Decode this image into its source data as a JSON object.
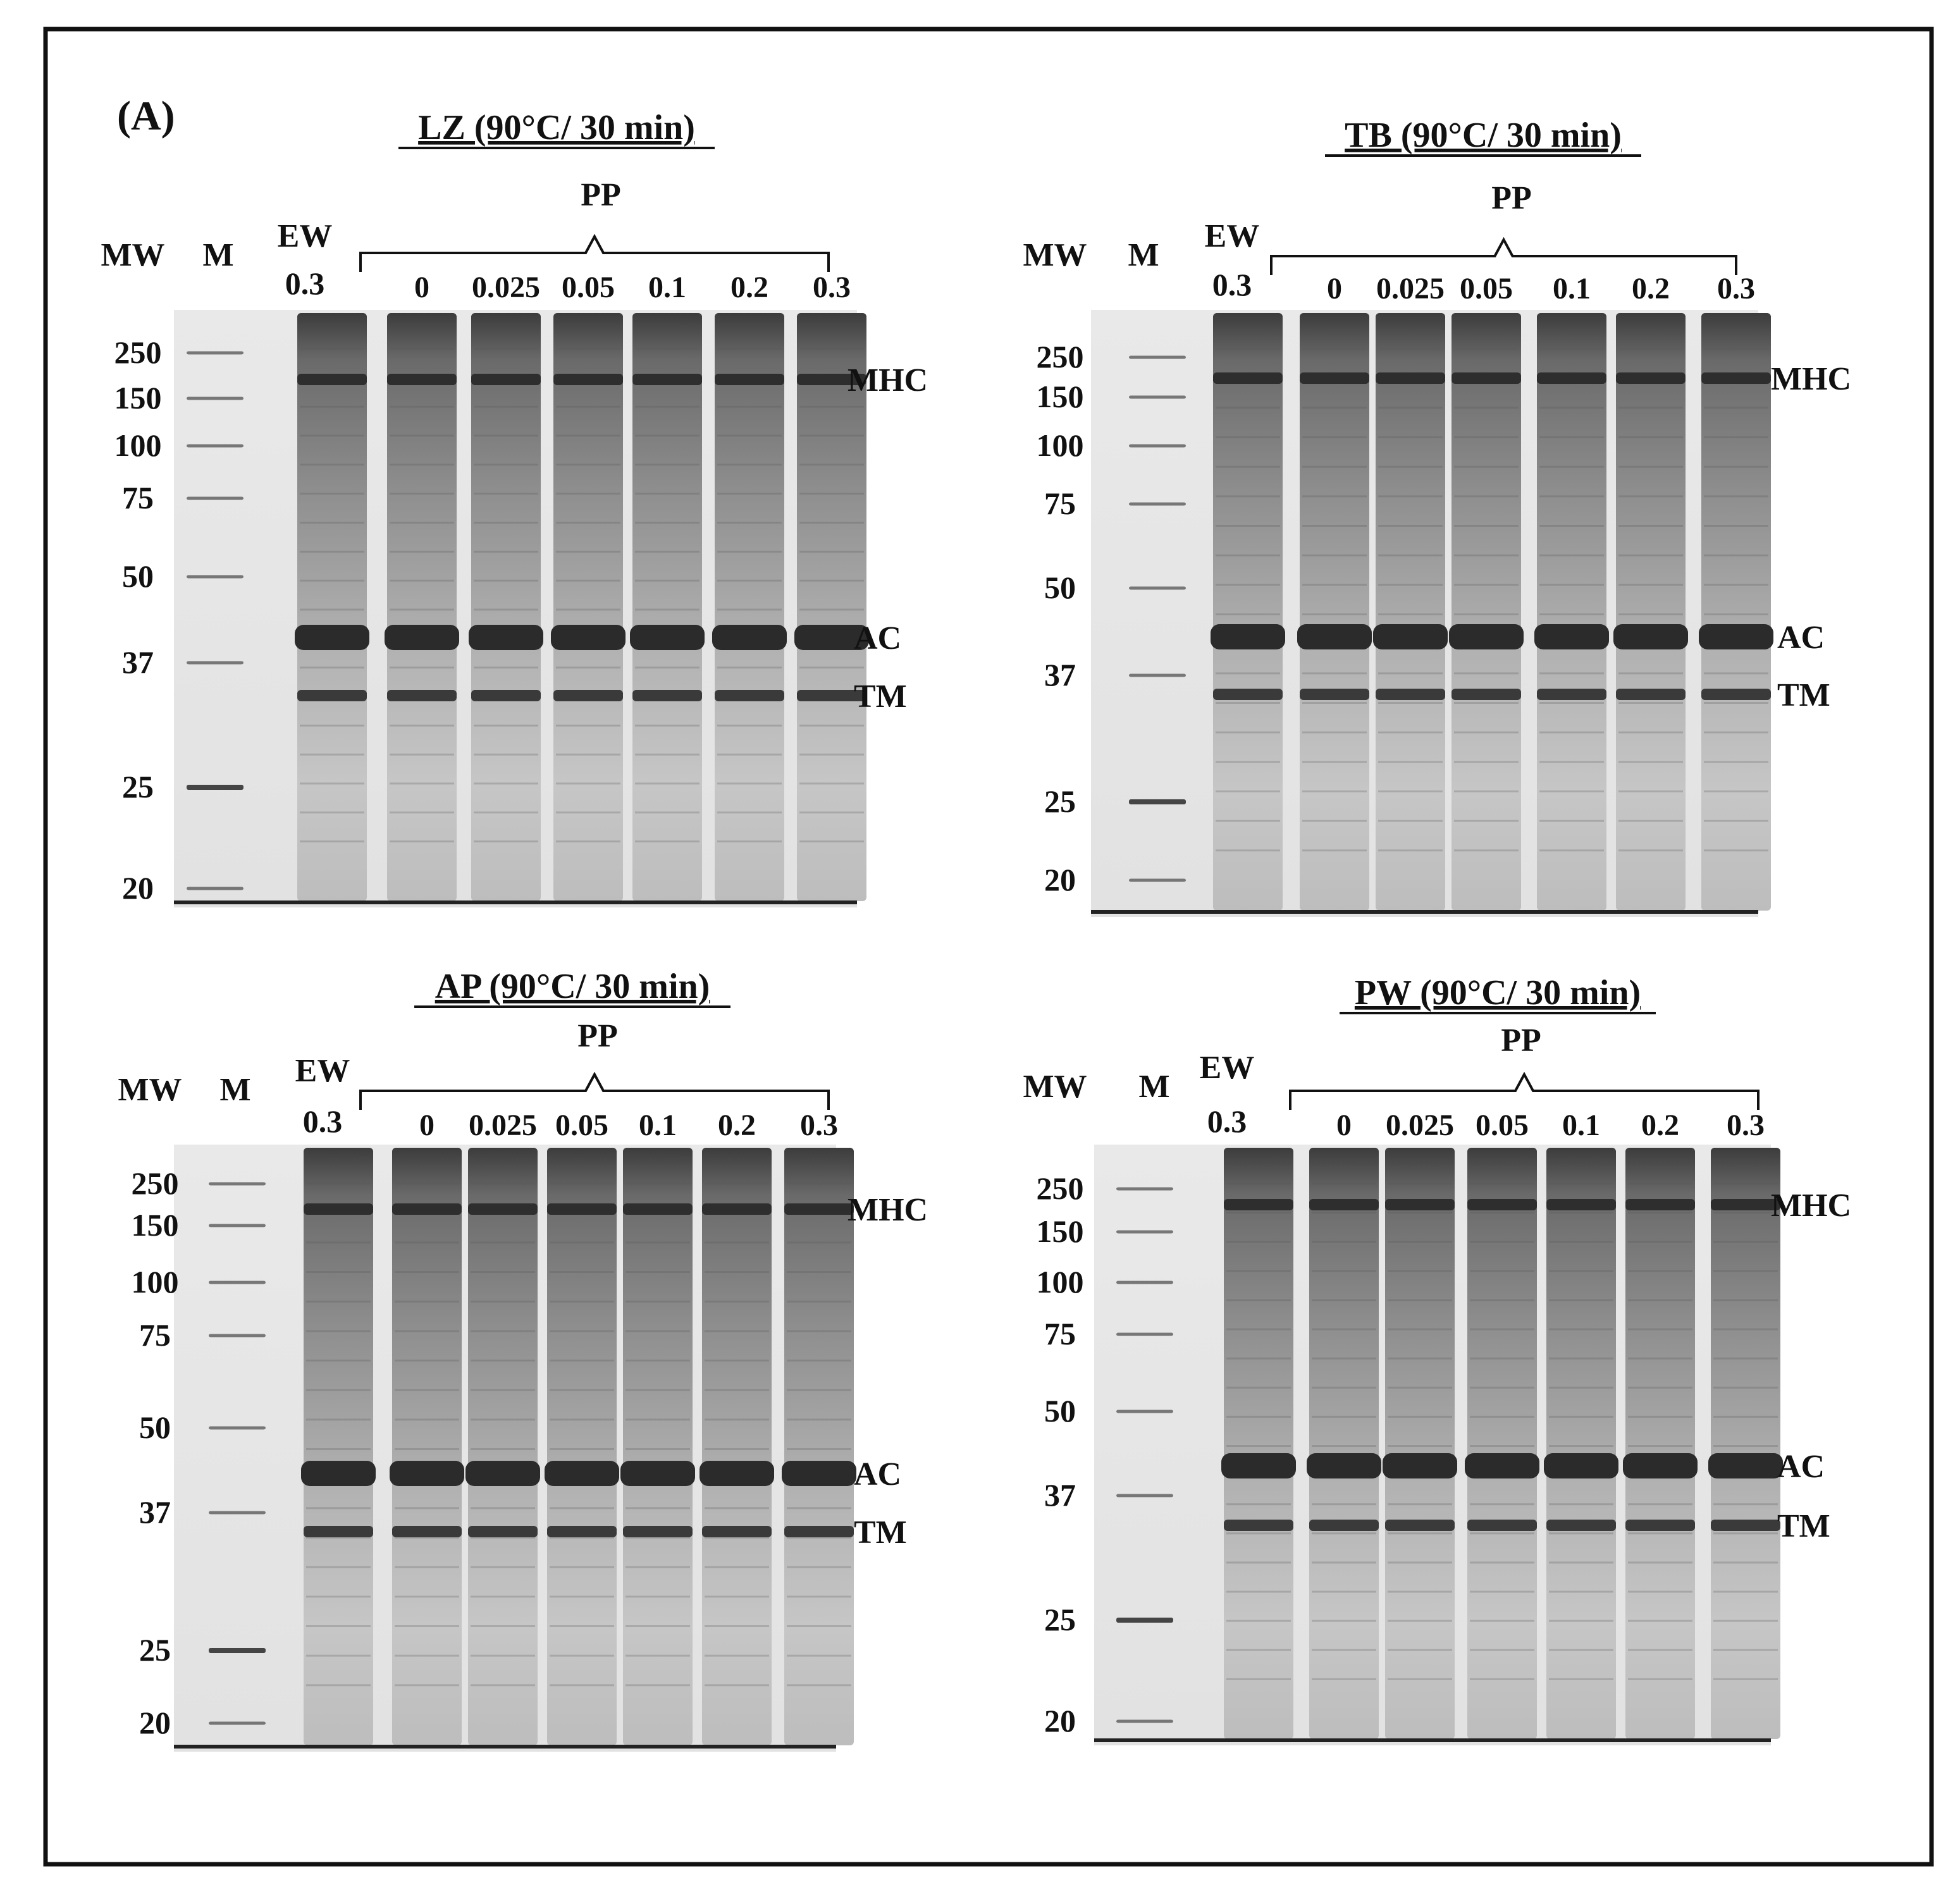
{
  "figure": {
    "panel_label": "(A)",
    "mw_label": "MW",
    "marker_label": "M",
    "group_label": "PP",
    "ew_label": "EW",
    "ew_conc": "0.3",
    "pp_concs": [
      "0",
      "0.025",
      "0.05",
      "0.1",
      "0.2",
      "0.3"
    ],
    "band_labels": [
      "MHC",
      "AC",
      "TM"
    ],
    "colors": {
      "frame": "#111111",
      "band": "#2e2e2e",
      "lane_bg": "#cfcfcf"
    }
  },
  "panels": [
    {
      "title": "LZ (90°C/ 30 min)",
      "mw_values": [
        "250",
        "150",
        "100",
        "75",
        "50",
        "37",
        "25",
        "20"
      ]
    },
    {
      "title": "TB (90°C/ 30 min)",
      "mw_values": [
        "250",
        "150",
        "100",
        "75",
        "50",
        "37",
        "25",
        "20"
      ]
    },
    {
      "title": "AP (90°C/ 30 min)",
      "mw_values": [
        "250",
        "150",
        "100",
        "75",
        "50",
        "37",
        "25",
        "20"
      ]
    },
    {
      "title": "PW (90°C/ 30 min)",
      "mw_values": [
        "250",
        "150",
        "100",
        "75",
        "50",
        "37",
        "25",
        "20"
      ]
    }
  ]
}
